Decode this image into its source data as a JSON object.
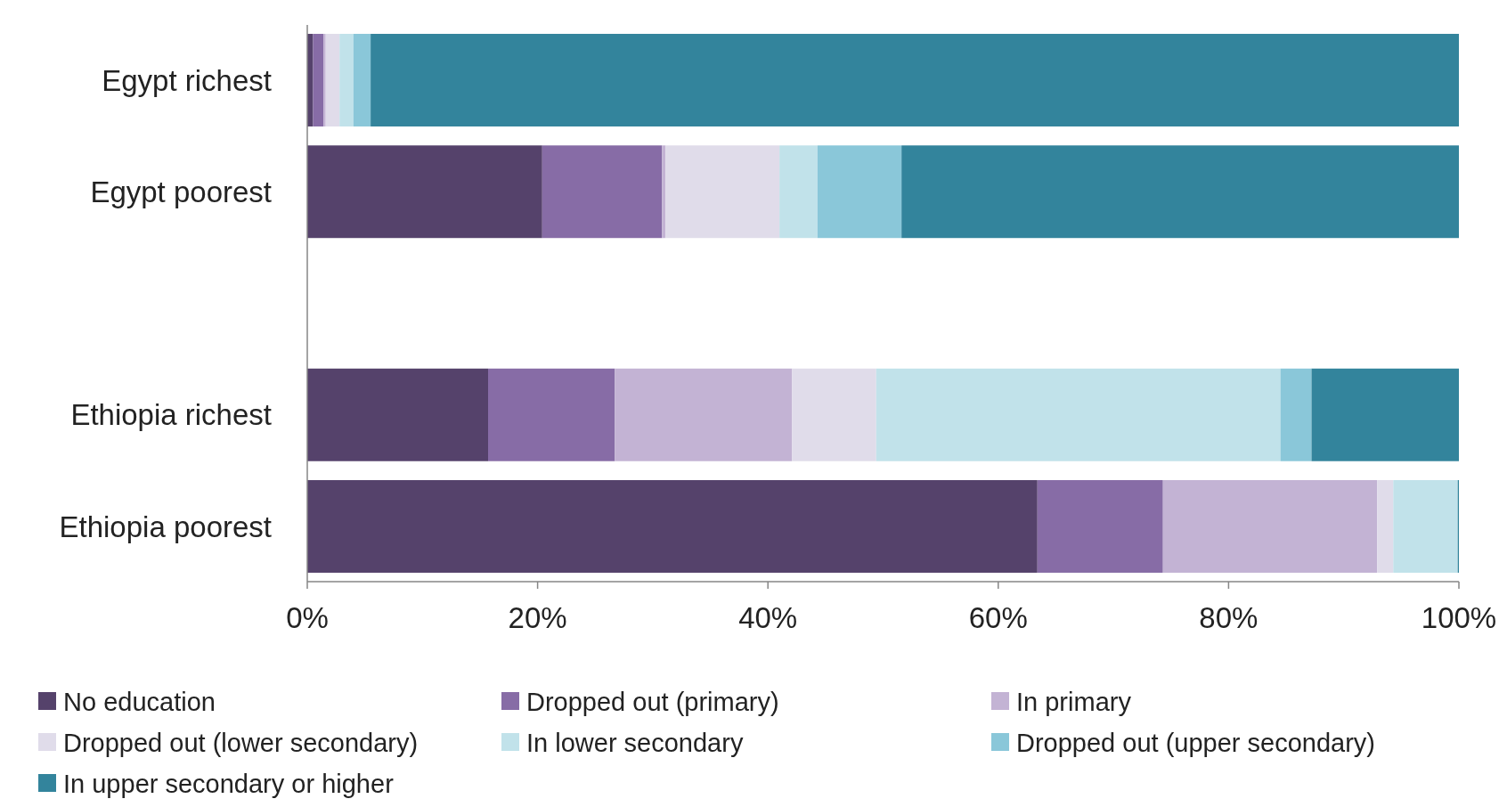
{
  "chart_data": {
    "type": "bar",
    "orientation": "horizontal",
    "stacked": true,
    "categories": [
      "Egypt richest",
      "Egypt poorest",
      null,
      "Ethiopia richest",
      "Ethiopia poorest"
    ],
    "series": [
      {
        "name": "No education",
        "color": "#55426b",
        "values": [
          0.5,
          20.4,
          null,
          15.7,
          63.4
        ]
      },
      {
        "name": "Dropped out (primary)",
        "color": "#876ca6",
        "values": [
          0.9,
          10.4,
          null,
          11.0,
          10.9
        ]
      },
      {
        "name": "In primary",
        "color": "#c3b3d4",
        "values": [
          0.2,
          0.3,
          null,
          15.4,
          18.6
        ]
      },
      {
        "name": "Dropped out (lower secondary)",
        "color": "#e0dcea",
        "values": [
          1.2,
          9.9,
          null,
          7.3,
          1.4
        ]
      },
      {
        "name": "In lower secondary",
        "color": "#c1e2ea",
        "values": [
          1.2,
          3.3,
          null,
          35.1,
          5.6
        ]
      },
      {
        "name": "Dropped out (upper secondary)",
        "color": "#8ac7d9",
        "values": [
          1.5,
          7.3,
          null,
          2.7,
          0
        ]
      },
      {
        "name": "In upper secondary or higher",
        "color": "#33849c",
        "values": [
          94.5,
          48.4,
          null,
          12.8,
          0.1
        ]
      }
    ],
    "xlim": [
      0,
      100
    ],
    "xticks": [
      {
        "value": 0,
        "label": "0%"
      },
      {
        "value": 20,
        "label": "20%"
      },
      {
        "value": 40,
        "label": "40%"
      },
      {
        "value": 60,
        "label": "60%"
      },
      {
        "value": 80,
        "label": "80%"
      },
      {
        "value": 100,
        "label": "100%"
      }
    ],
    "grid": false,
    "legend": "bottom"
  }
}
